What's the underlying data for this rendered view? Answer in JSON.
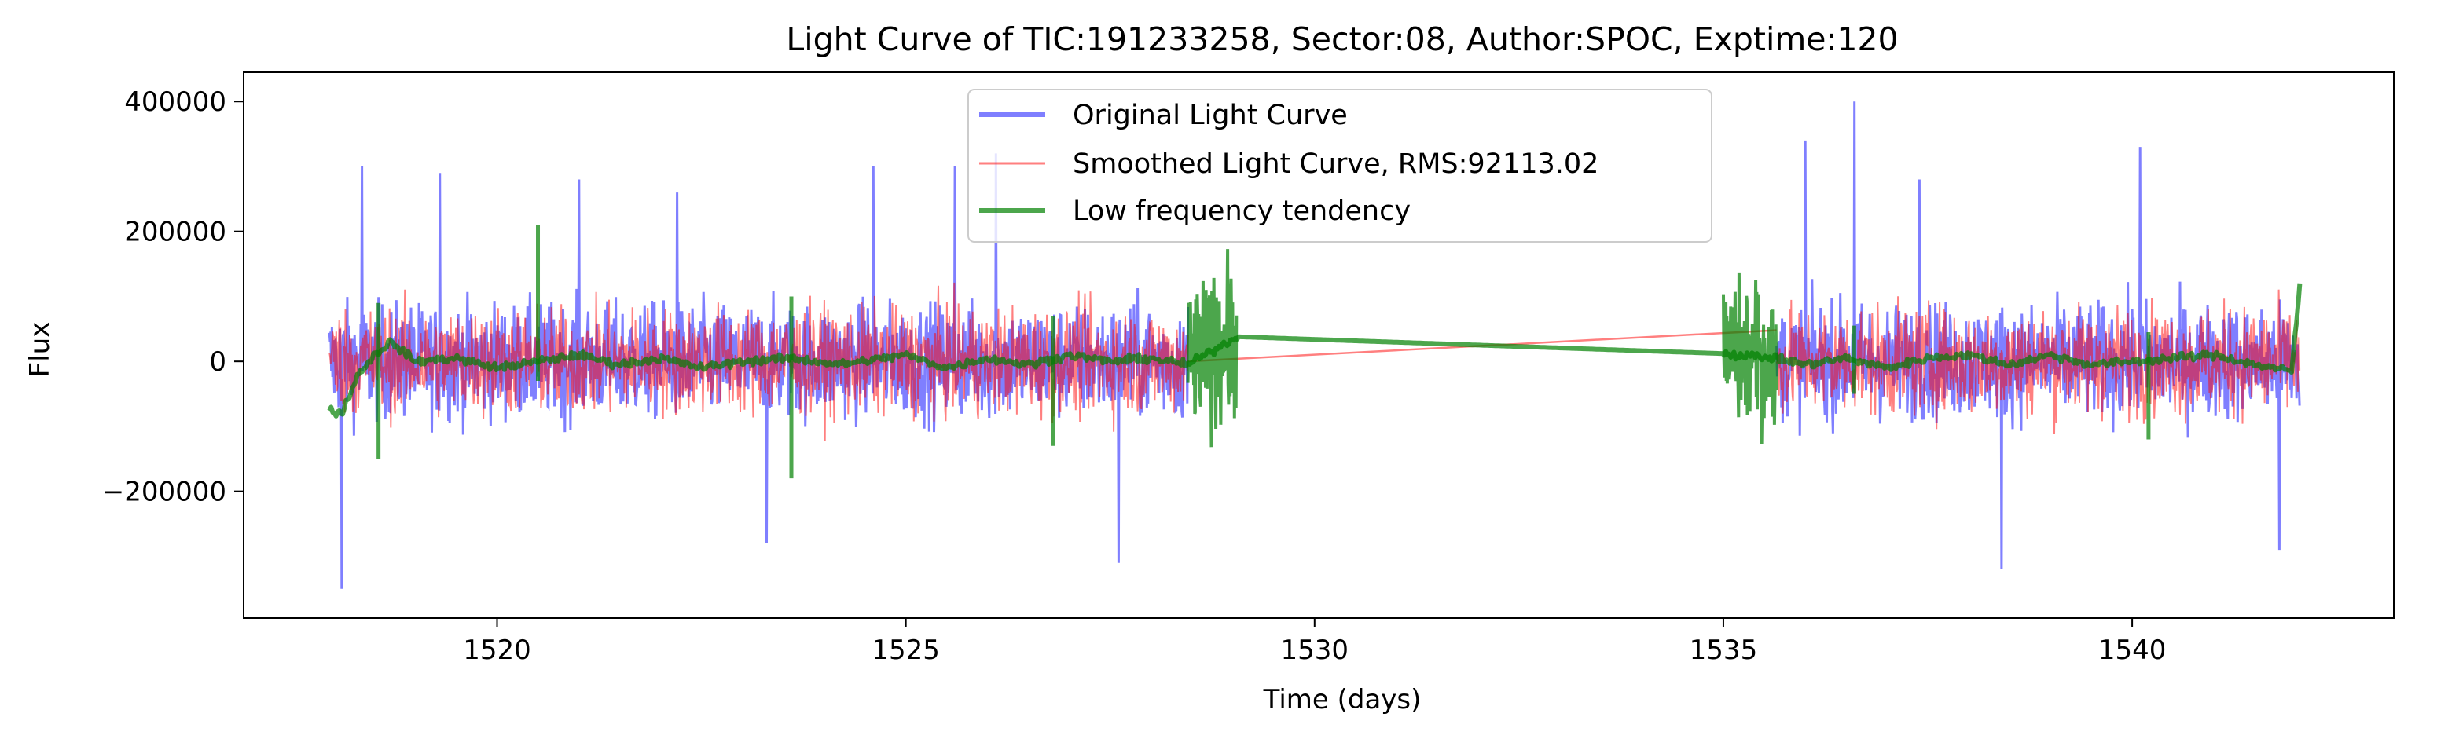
{
  "chart_data": {
    "type": "line",
    "title": "Light Curve of TIC:191233258, Sector:08, Author:SPOC, Exptime:120",
    "xlabel": "Time (days)",
    "ylabel": "Flux",
    "xlim": [
      1516.9,
      1543.2
    ],
    "ylim": [
      -395000,
      445000
    ],
    "x_ticks": [
      1520,
      1525,
      1530,
      1535,
      1540
    ],
    "y_ticks": [
      -200000,
      0,
      200000,
      400000
    ],
    "x_tick_labels": [
      "1520",
      "1525",
      "1530",
      "1535",
      "1540"
    ],
    "y_tick_labels": [
      "−200000",
      "0",
      "200000",
      "400000"
    ],
    "grid": false,
    "legend_position": "top-center",
    "data_segments": [
      {
        "x_start": 1517.95,
        "x_end": 1528.45
      },
      {
        "x_start": 1535.65,
        "x_end": 1542.05
      }
    ],
    "series": [
      {
        "name": "Original Light Curve",
        "color": "#0000ff",
        "opacity": 0.5,
        "style": "noisy-envelope",
        "typical_amplitude": 160000,
        "spikes": [
          {
            "x": 1518.1,
            "y": -350000
          },
          {
            "x": 1518.35,
            "y": 300000
          },
          {
            "x": 1519.3,
            "y": 290000
          },
          {
            "x": 1521.0,
            "y": 280000
          },
          {
            "x": 1522.2,
            "y": 260000
          },
          {
            "x": 1523.3,
            "y": -280000
          },
          {
            "x": 1524.6,
            "y": 300000
          },
          {
            "x": 1525.6,
            "y": 300000
          },
          {
            "x": 1526.1,
            "y": 320000
          },
          {
            "x": 1527.6,
            "y": -310000
          },
          {
            "x": 1536.0,
            "y": 340000
          },
          {
            "x": 1536.6,
            "y": 400000
          },
          {
            "x": 1537.4,
            "y": 280000
          },
          {
            "x": 1538.4,
            "y": -320000
          },
          {
            "x": 1540.1,
            "y": 330000
          },
          {
            "x": 1541.8,
            "y": -290000
          }
        ]
      },
      {
        "name": "Smoothed Light Curve, RMS:92113.02",
        "color": "#ff0000",
        "opacity": 0.5,
        "style": "noisy-envelope",
        "typical_amplitude": 150000,
        "gap_line": [
          {
            "x": 1528.45,
            "y": 0
          },
          {
            "x": 1535.65,
            "y": 48000
          }
        ]
      },
      {
        "name": "Low frequency tendency",
        "color": "#008000",
        "opacity": 0.7,
        "trend": [
          {
            "x": 1517.95,
            "y": -75000
          },
          {
            "x": 1518.1,
            "y": -80000
          },
          {
            "x": 1518.3,
            "y": -20000
          },
          {
            "x": 1518.5,
            "y": 10000
          },
          {
            "x": 1518.7,
            "y": 30000
          },
          {
            "x": 1519.0,
            "y": 0
          },
          {
            "x": 1519.5,
            "y": 5000
          },
          {
            "x": 1520.0,
            "y": -10000
          },
          {
            "x": 1520.5,
            "y": 0
          },
          {
            "x": 1521.0,
            "y": 10000
          },
          {
            "x": 1521.5,
            "y": -5000
          },
          {
            "x": 1522.0,
            "y": 5000
          },
          {
            "x": 1522.5,
            "y": -10000
          },
          {
            "x": 1523.0,
            "y": 0
          },
          {
            "x": 1523.6,
            "y": 5000
          },
          {
            "x": 1524.2,
            "y": -5000
          },
          {
            "x": 1525.0,
            "y": 10000
          },
          {
            "x": 1525.5,
            "y": -10000
          },
          {
            "x": 1526.0,
            "y": 5000
          },
          {
            "x": 1526.5,
            "y": -5000
          },
          {
            "x": 1527.0,
            "y": 10000
          },
          {
            "x": 1527.5,
            "y": 0
          },
          {
            "x": 1528.0,
            "y": 5000
          },
          {
            "x": 1528.45,
            "y": -5000
          },
          {
            "x": 1529.05,
            "y": 38000
          },
          {
            "x": 1535.0,
            "y": 12000
          },
          {
            "x": 1535.65,
            "y": 5000
          },
          {
            "x": 1536.0,
            "y": -5000
          },
          {
            "x": 1536.5,
            "y": 5000
          },
          {
            "x": 1537.0,
            "y": -10000
          },
          {
            "x": 1537.5,
            "y": 5000
          },
          {
            "x": 1538.0,
            "y": 10000
          },
          {
            "x": 1538.5,
            "y": -5000
          },
          {
            "x": 1539.0,
            "y": 10000
          },
          {
            "x": 1539.5,
            "y": -5000
          },
          {
            "x": 1540.0,
            "y": 0
          },
          {
            "x": 1540.5,
            "y": 5000
          },
          {
            "x": 1541.0,
            "y": 10000
          },
          {
            "x": 1541.5,
            "y": -5000
          },
          {
            "x": 1541.95,
            "y": -15000
          },
          {
            "x": 1542.05,
            "y": 115000
          }
        ],
        "spikes": [
          {
            "x": 1518.55,
            "y": 90000,
            "y2": -150000
          },
          {
            "x": 1520.5,
            "y": 210000,
            "y2": -30000
          },
          {
            "x": 1523.6,
            "y": 100000,
            "y2": -180000
          },
          {
            "x": 1526.8,
            "y": 70000,
            "y2": -130000
          },
          {
            "x": 1536.6,
            "y": 55000,
            "y2": -50000
          },
          {
            "x": 1540.2,
            "y": 45000,
            "y2": -120000
          }
        ],
        "bursts": [
          {
            "x_start": 1528.45,
            "x_end": 1529.05,
            "amplitude": 230000
          },
          {
            "x_start": 1535.0,
            "x_end": 1535.65,
            "amplitude": 220000
          }
        ]
      }
    ]
  }
}
